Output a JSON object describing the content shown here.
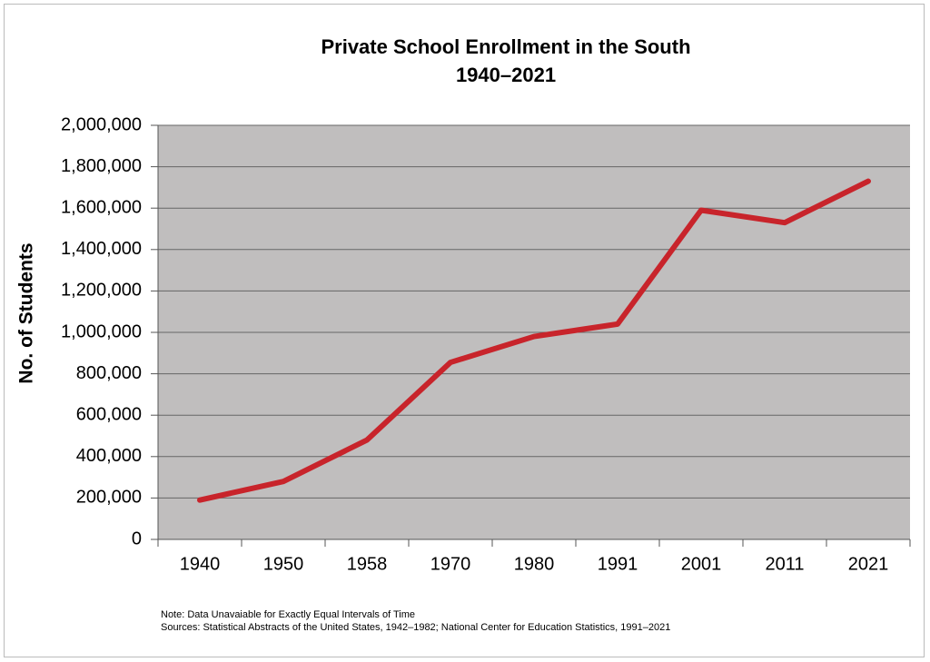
{
  "chart_data": {
    "type": "line",
    "title": "Private School Enrollment in the South",
    "subtitle": "1940–2021",
    "y_label": "No. of Students",
    "categories": [
      "1940",
      "1950",
      "1958",
      "1970",
      "1980",
      "1991",
      "2001",
      "2011",
      "2021"
    ],
    "series": [
      {
        "name": "Enrollment",
        "color": "#c8242b",
        "values": [
          190000,
          280000,
          480000,
          855000,
          980000,
          1040000,
          1590000,
          1530000,
          1730000
        ]
      }
    ],
    "ylim": [
      0,
      2000000
    ],
    "yticks": [
      0,
      {
        "value": 200000,
        "label": "200,000"
      },
      {
        "value": 400000,
        "label": "400,000"
      },
      {
        "value": 600000,
        "label": "600,000"
      },
      {
        "value": 800000,
        "label": "800,000"
      },
      {
        "value": 1000000,
        "label": "1,000,000"
      },
      {
        "value": 1200000,
        "label": "1,200,000"
      },
      {
        "value": 1400000,
        "label": "1,400,000"
      },
      {
        "value": 1600000,
        "label": "1,600,000"
      },
      {
        "value": 1800000,
        "label": "1,800,000"
      },
      {
        "value": 2000000,
        "label": "2,000,000"
      }
    ],
    "grid": true,
    "plot_background": "#c0bebe",
    "note": "Note: Data Unavaiable for Exactly Equal Intervals of Time",
    "sources": "Sources: Statistical Abstracts of the United States, 1942–1982; National Center for Education Statistics, 1991–2021"
  }
}
